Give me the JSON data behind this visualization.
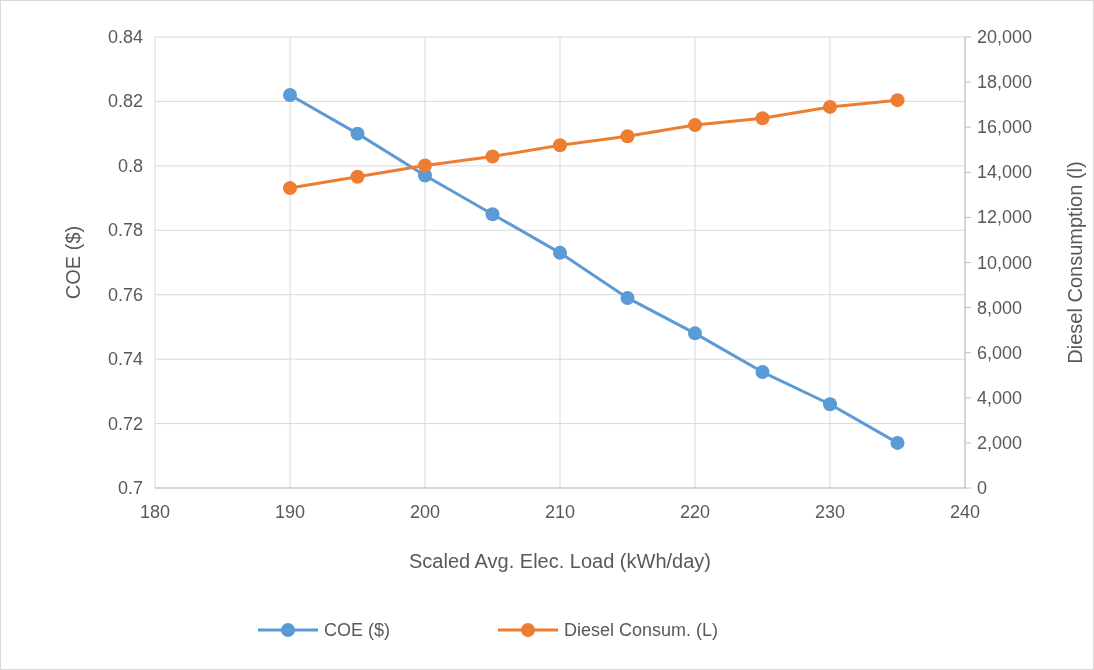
{
  "chart_data": {
    "type": "line",
    "xlabel": "Scaled Avg. Elec. Load (kWh/day)",
    "ylabel": "COE ($)",
    "y2label": "Diesel Consumption (l)",
    "x": [
      190,
      195,
      200,
      205,
      210,
      215,
      220,
      225,
      230,
      235
    ],
    "xlim": [
      180,
      240
    ],
    "xticks": [
      180,
      190,
      200,
      210,
      220,
      230,
      240
    ],
    "ylim": [
      0.7,
      0.84
    ],
    "yticks": [
      0.7,
      0.72,
      0.74,
      0.76,
      0.78,
      0.8,
      0.82,
      0.84
    ],
    "y2lim": [
      0,
      20000
    ],
    "y2ticks": [
      0,
      {
        "value": 2000,
        "label": "2,000"
      },
      {
        "value": 4000,
        "label": "4,000"
      },
      {
        "value": 6000,
        "label": "6,000"
      },
      {
        "value": 8000,
        "label": "8,000"
      },
      {
        "value": 10000,
        "label": "10,000"
      },
      {
        "value": 12000,
        "label": "12,000"
      },
      {
        "value": 14000,
        "label": "14,000"
      },
      {
        "value": 16000,
        "label": "16,000"
      },
      {
        "value": 18000,
        "label": "18,000"
      },
      {
        "value": 20000,
        "label": "20,000"
      }
    ],
    "series": [
      {
        "name": "COE ($)",
        "color": "#5b9bd5",
        "values": [
          0.822,
          0.81,
          0.797,
          0.785,
          0.773,
          0.759,
          0.748,
          0.736,
          0.726,
          0.714
        ]
      },
      {
        "name": "Diesel Consum. (L)",
        "color": "#ed7d31",
        "axis": "y2",
        "values": [
          13300,
          13800,
          14300,
          14700,
          15200,
          15600,
          16100,
          16400,
          16900,
          17200
        ]
      }
    ],
    "grid": true,
    "legend": "bottom",
    "marker": "circle",
    "line_style": "solid"
  }
}
